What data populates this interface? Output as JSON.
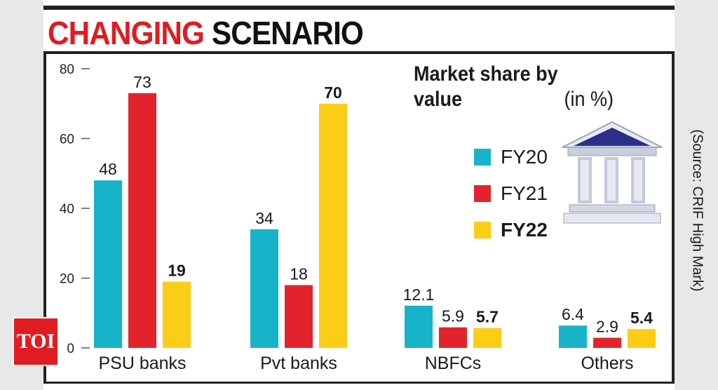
{
  "header": {
    "title_red": "CHANGING",
    "title_black": "SCENARIO"
  },
  "branding": {
    "logo_text": "TOI"
  },
  "legend": {
    "title_bold": "Market share by value",
    "title_rest": "(in %)",
    "items": [
      {
        "label": "FY20",
        "color": "#17b3c8",
        "bold": false
      },
      {
        "label": "FY21",
        "color": "#e3232b",
        "bold": false
      },
      {
        "label": "FY22",
        "color": "#fbcd17",
        "bold": true
      }
    ]
  },
  "source": "(Source: CRIF High Mark)",
  "chart_data": {
    "type": "bar",
    "title": "CHANGING SCENARIO",
    "ylabel": "",
    "xlabel": "",
    "ylim": [
      0,
      80
    ],
    "yticks": [
      0,
      20,
      40,
      60,
      80
    ],
    "categories": [
      "PSU banks",
      "Pvt banks",
      "NBFCs",
      "Others"
    ],
    "series": [
      {
        "name": "FY20",
        "color": "#17b3c8",
        "values": [
          48,
          34,
          12.1,
          6.4
        ],
        "labels": [
          "48",
          "34",
          "12.1",
          "6.4"
        ],
        "bold": false
      },
      {
        "name": "FY21",
        "color": "#e3232b",
        "values": [
          73,
          18,
          5.9,
          2.9
        ],
        "labels": [
          "73",
          "18",
          "5.9",
          "2.9"
        ],
        "bold": false
      },
      {
        "name": "FY22",
        "color": "#fbcd17",
        "values": [
          19,
          70,
          5.7,
          5.4
        ],
        "labels": [
          "19",
          "70",
          "5.7",
          "5.4"
        ],
        "bold": true
      }
    ],
    "legend_position": "top-right"
  }
}
